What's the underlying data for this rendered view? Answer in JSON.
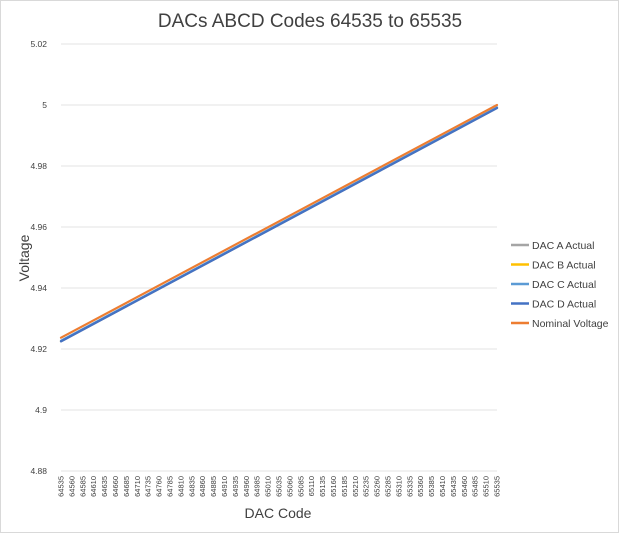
{
  "chart_data": {
    "type": "line",
    "title": "DACs ABCD Codes 64535 to 65535",
    "xlabel": "DAC Code",
    "ylabel": "Voltage",
    "ylim": [
      4.88,
      5.02
    ],
    "yticks": [
      "4.88",
      "4.9",
      "4.92",
      "4.94",
      "4.96",
      "4.98",
      "5",
      "5.02"
    ],
    "xlim": [
      64535,
      65535
    ],
    "xticks": [
      "64535",
      "64560",
      "64585",
      "64610",
      "64635",
      "64660",
      "64685",
      "64710",
      "64735",
      "64760",
      "64785",
      "64810",
      "64835",
      "64860",
      "64885",
      "64910",
      "64935",
      "64960",
      "64985",
      "65010",
      "65035",
      "65060",
      "65085",
      "65110",
      "65135",
      "65160",
      "65185",
      "65210",
      "65235",
      "65260",
      "65285",
      "65310",
      "65335",
      "65360",
      "65385",
      "65410",
      "65435",
      "65460",
      "65485",
      "65510",
      "65535"
    ],
    "grid": true,
    "legend_position": "right",
    "series": [
      {
        "name": "DAC A Actual",
        "color": "#a5a5a5",
        "x": [
          64535,
          65535
        ],
        "y": [
          4.9225,
          4.999
        ]
      },
      {
        "name": "DAC B Actual",
        "color": "#ffc000",
        "x": [
          64535,
          65535
        ],
        "y": [
          4.9226,
          4.9991
        ]
      },
      {
        "name": "DAC C Actual",
        "color": "#5b9bd5",
        "x": [
          64535,
          65535
        ],
        "y": [
          4.9227,
          4.9992
        ]
      },
      {
        "name": "DAC D Actual",
        "color": "#4472c4",
        "x": [
          64535,
          65535
        ],
        "y": [
          4.9225,
          4.999
        ]
      },
      {
        "name": "Nominal Voltage",
        "color": "#ed7d31",
        "x": [
          64535,
          65535
        ],
        "y": [
          4.9237,
          5.0
        ]
      }
    ]
  }
}
